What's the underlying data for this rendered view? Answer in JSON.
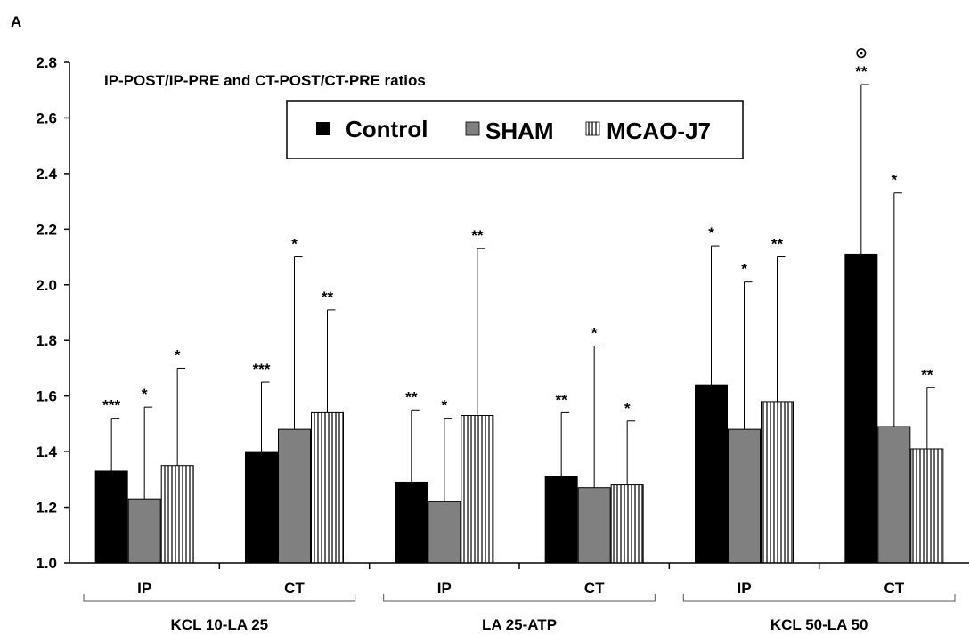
{
  "panel_letter": "A",
  "chart_data": {
    "type": "bar",
    "title": "IP-POST/IP-PRE and CT-POST/CT-PRE ratios",
    "xlabel": "",
    "ylabel": "",
    "ylim": [
      1.0,
      2.8
    ],
    "yticks": [
      "1.0",
      "1.2",
      "1.4",
      "1.6",
      "1.8",
      "2.0",
      "2.2",
      "2.4",
      "2.6",
      "2.8"
    ],
    "categories": [
      "IP",
      "CT",
      "IP",
      "CT",
      "IP",
      "CT"
    ],
    "groups": [
      {
        "label": "KCL 10-LA 25",
        "categories": [
          "IP",
          "CT"
        ]
      },
      {
        "label": "LA 25-ATP",
        "categories": [
          "IP",
          "CT"
        ]
      },
      {
        "label": "KCL 50-LA 50",
        "categories": [
          "IP",
          "CT"
        ]
      }
    ],
    "legend": {
      "position": "top-center"
    },
    "series": [
      {
        "name": "Control",
        "color": "#000000",
        "pattern": "solid",
        "values": [
          1.33,
          1.4,
          1.29,
          1.31,
          1.64,
          2.11
        ],
        "errors": [
          0.19,
          0.25,
          0.26,
          0.23,
          0.5,
          0.61
        ],
        "significance": [
          "***",
          "***",
          "**",
          "**",
          "*",
          "**"
        ]
      },
      {
        "name": "SHAM",
        "color": "#808080",
        "pattern": "solid",
        "values": [
          1.23,
          1.48,
          1.22,
          1.27,
          1.48,
          1.49
        ],
        "errors": [
          0.33,
          0.62,
          0.3,
          0.51,
          0.53,
          0.84
        ],
        "significance": [
          "*",
          "*",
          "*",
          "*",
          "*",
          "*"
        ]
      },
      {
        "name": "MCAO-J7",
        "color": "#ffffff",
        "pattern": "vertical-stripes",
        "values": [
          1.35,
          1.54,
          1.53,
          1.28,
          1.58,
          1.41
        ],
        "errors": [
          0.35,
          0.37,
          0.6,
          0.23,
          0.52,
          0.22
        ],
        "significance": [
          "*",
          "**",
          "**",
          "*",
          "**",
          "**"
        ]
      }
    ],
    "annotations": [
      {
        "symbol": "⊙",
        "category_index": 5,
        "series": "Control"
      }
    ]
  }
}
